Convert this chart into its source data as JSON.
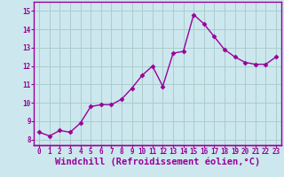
{
  "x": [
    0,
    1,
    2,
    3,
    4,
    5,
    6,
    7,
    8,
    9,
    10,
    11,
    12,
    13,
    14,
    15,
    16,
    17,
    18,
    19,
    20,
    21,
    22,
    23
  ],
  "y": [
    8.4,
    8.2,
    8.5,
    8.4,
    8.9,
    9.8,
    9.9,
    9.9,
    10.2,
    10.8,
    11.5,
    12.0,
    10.9,
    12.7,
    12.8,
    14.8,
    14.3,
    13.6,
    12.9,
    12.5,
    12.2,
    12.1,
    12.1,
    12.5
  ],
  "line_color": "#990099",
  "marker": "D",
  "marker_size": 2.5,
  "line_width": 1.0,
  "bg_color": "#cce8ee",
  "grid_color": "#aacccc",
  "plot_bg": "#cce8ee",
  "xlabel": "Windchill (Refroidissement éolien,°C)",
  "ylabel_ticks": [
    8,
    9,
    10,
    11,
    12,
    13,
    14,
    15
  ],
  "ylim": [
    7.7,
    15.5
  ],
  "xlim": [
    -0.5,
    23.5
  ],
  "xticks": [
    0,
    1,
    2,
    3,
    4,
    5,
    6,
    7,
    8,
    9,
    10,
    11,
    12,
    13,
    14,
    15,
    16,
    17,
    18,
    19,
    20,
    21,
    22,
    23
  ],
  "xtick_labels": [
    "0",
    "1",
    "2",
    "3",
    "4",
    "5",
    "6",
    "7",
    "8",
    "9",
    "10",
    "11",
    "12",
    "13",
    "14",
    "15",
    "16",
    "17",
    "18",
    "19",
    "20",
    "21",
    "22",
    "23"
  ],
  "tick_fontsize": 5.5,
  "xlabel_fontsize": 7.5,
  "tick_color": "#990099",
  "xlabel_color": "#990099",
  "spine_color": "#990099",
  "separator_color": "#990099"
}
